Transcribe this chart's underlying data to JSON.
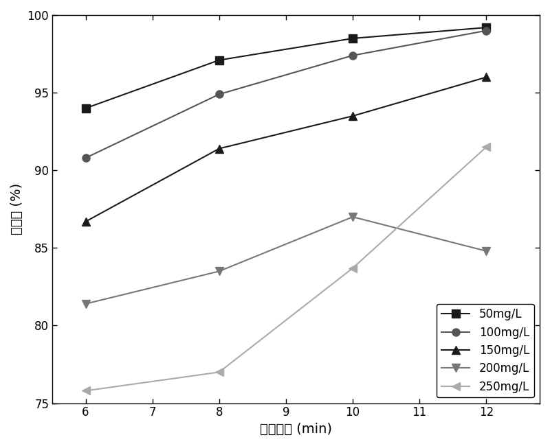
{
  "x": [
    6,
    8,
    10,
    12
  ],
  "series": [
    {
      "label": "50mg/L",
      "y": [
        94.0,
        97.1,
        98.5,
        99.2
      ],
      "color": "#1a1a1a",
      "marker": "s",
      "markersize": 8,
      "linestyle": "-"
    },
    {
      "label": "100mg/L",
      "y": [
        90.8,
        94.9,
        97.4,
        99.0
      ],
      "color": "#555555",
      "marker": "o",
      "markersize": 8,
      "linestyle": "-"
    },
    {
      "label": "150mg/L",
      "y": [
        86.7,
        91.4,
        93.5,
        96.0
      ],
      "color": "#1a1a1a",
      "marker": "^",
      "markersize": 8,
      "linestyle": "-"
    },
    {
      "label": "200mg/L",
      "y": [
        81.4,
        83.5,
        87.0,
        84.8
      ],
      "color": "#777777",
      "marker": "v",
      "markersize": 8,
      "linestyle": "-"
    },
    {
      "label": "250mg/L",
      "y": [
        75.8,
        77.0,
        83.7,
        91.5
      ],
      "color": "#aaaaaa",
      "marker": "<",
      "markersize": 8,
      "linestyle": "-"
    }
  ],
  "xlabel": "反应时间 (min)",
  "ylabel": "降解率 (%)",
  "xlim": [
    5.5,
    12.8
  ],
  "ylim": [
    75,
    100
  ],
  "xticks": [
    6,
    7,
    8,
    9,
    10,
    11,
    12
  ],
  "yticks": [
    75,
    80,
    85,
    90,
    95,
    100
  ],
  "legend_loc": "lower right",
  "linewidth": 1.5,
  "background_color": "#ffffff",
  "figwidth": 8.0,
  "figheight": 6.5,
  "dpi": 100
}
